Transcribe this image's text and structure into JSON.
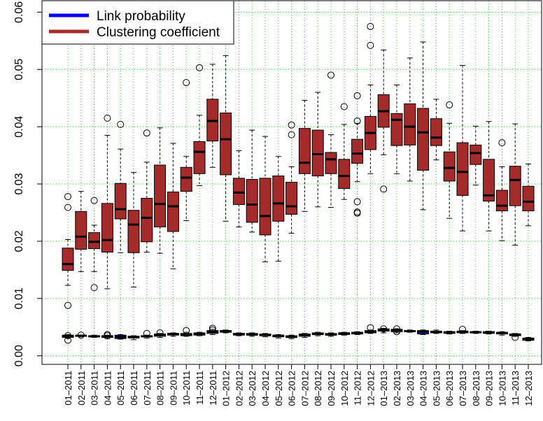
{
  "chart_data": {
    "type": "box",
    "categories": [
      "01–2011",
      "02–2011",
      "03–2011",
      "04–2011",
      "05–2011",
      "06–2011",
      "07–2011",
      "08–2011",
      "09–2011",
      "10–2011",
      "11–2011",
      "12–2011",
      "01–2012",
      "02–2012",
      "03–2012",
      "04–2012",
      "05–2012",
      "06–2012",
      "07–2012",
      "08–2012",
      "09–2012",
      "10–2012",
      "11–2012",
      "12–2012",
      "01–2013",
      "02–2013",
      "03–2013",
      "04–2013",
      "05–2013",
      "06–2013",
      "07–2013",
      "08–2013",
      "09–2013",
      "10–2013",
      "11–2013",
      "12–2013"
    ],
    "yticks": [
      "0.00",
      "0.01",
      "0.02",
      "0.03",
      "0.04",
      "0.05",
      "0.06"
    ],
    "ylim": [
      -0.0015,
      0.062
    ],
    "grid": true,
    "legend_position": "top-left",
    "colors": {
      "link": "#1a1aaa",
      "clustering": "#a52a2a",
      "grid": "#33cc33",
      "legend_link": "#0000ff",
      "legend_clust": "#a52a2a"
    },
    "series": [
      {
        "name": "Link probability",
        "boxes": [
          {
            "lw": 0.0031,
            "q1": 0.0032,
            "med": 0.0034,
            "q3": 0.0036,
            "uw": 0.0037,
            "out": [
              0.0027,
              0.0035
            ]
          },
          {
            "lw": 0.0033,
            "q1": 0.0034,
            "med": 0.0035,
            "q3": 0.0035,
            "uw": 0.0036,
            "out": [
              0.0036
            ]
          },
          {
            "lw": 0.0032,
            "q1": 0.0033,
            "med": 0.0034,
            "q3": 0.0035,
            "uw": 0.0036,
            "out": []
          },
          {
            "lw": 0.003,
            "q1": 0.0032,
            "med": 0.0034,
            "q3": 0.0035,
            "uw": 0.0036,
            "out": [
              0.0035,
              0.0037
            ]
          },
          {
            "lw": 0.0029,
            "q1": 0.003,
            "med": 0.0033,
            "q3": 0.0036,
            "uw": 0.0037,
            "out": []
          },
          {
            "lw": 0.0028,
            "q1": 0.0031,
            "med": 0.0033,
            "q3": 0.0034,
            "uw": 0.0035,
            "out": []
          },
          {
            "lw": 0.0031,
            "q1": 0.0033,
            "med": 0.0034,
            "q3": 0.0035,
            "uw": 0.0036,
            "out": [
              0.0039
            ]
          },
          {
            "lw": 0.0032,
            "q1": 0.0034,
            "med": 0.0036,
            "q3": 0.0038,
            "uw": 0.0039,
            "out": [
              0.004
            ]
          },
          {
            "lw": 0.0034,
            "q1": 0.0036,
            "med": 0.0038,
            "q3": 0.0039,
            "uw": 0.004,
            "out": []
          },
          {
            "lw": 0.0034,
            "q1": 0.0035,
            "med": 0.0037,
            "q3": 0.0039,
            "uw": 0.0041,
            "out": [
              0.0044
            ]
          },
          {
            "lw": 0.0035,
            "q1": 0.0036,
            "med": 0.0038,
            "q3": 0.004,
            "uw": 0.0041,
            "out": []
          },
          {
            "lw": 0.0037,
            "q1": 0.0039,
            "med": 0.0042,
            "q3": 0.0044,
            "uw": 0.0046,
            "out": [
              0.0045,
              0.0048
            ]
          },
          {
            "lw": 0.004,
            "q1": 0.0041,
            "med": 0.0043,
            "q3": 0.0044,
            "uw": 0.0045,
            "out": []
          },
          {
            "lw": 0.0035,
            "q1": 0.0036,
            "med": 0.0038,
            "q3": 0.0039,
            "uw": 0.004,
            "out": []
          },
          {
            "lw": 0.0034,
            "q1": 0.0036,
            "med": 0.0037,
            "q3": 0.0039,
            "uw": 0.004,
            "out": []
          },
          {
            "lw": 0.0033,
            "q1": 0.0035,
            "med": 0.0036,
            "q3": 0.0038,
            "uw": 0.0039,
            "out": []
          },
          {
            "lw": 0.0031,
            "q1": 0.0033,
            "med": 0.0035,
            "q3": 0.0036,
            "uw": 0.0037,
            "out": []
          },
          {
            "lw": 0.003,
            "q1": 0.0032,
            "med": 0.0033,
            "q3": 0.0035,
            "uw": 0.0036,
            "out": []
          },
          {
            "lw": 0.0032,
            "q1": 0.0034,
            "med": 0.0036,
            "q3": 0.0038,
            "uw": 0.0039,
            "out": []
          },
          {
            "lw": 0.0035,
            "q1": 0.0037,
            "med": 0.0038,
            "q3": 0.004,
            "uw": 0.0041,
            "out": []
          },
          {
            "lw": 0.0034,
            "q1": 0.0036,
            "med": 0.0037,
            "q3": 0.0039,
            "uw": 0.004,
            "out": []
          },
          {
            "lw": 0.0036,
            "q1": 0.0037,
            "med": 0.0039,
            "q3": 0.004,
            "uw": 0.0041,
            "out": []
          },
          {
            "lw": 0.0037,
            "q1": 0.0038,
            "med": 0.004,
            "q3": 0.0041,
            "uw": 0.0042,
            "out": []
          },
          {
            "lw": 0.0039,
            "q1": 0.004,
            "med": 0.0042,
            "q3": 0.0044,
            "uw": 0.0045,
            "out": [
              0.0049
            ]
          },
          {
            "lw": 0.004,
            "q1": 0.0043,
            "med": 0.0045,
            "q3": 0.0047,
            "uw": 0.0048,
            "out": [
              0.0047
            ]
          },
          {
            "lw": 0.004,
            "q1": 0.0042,
            "med": 0.0045,
            "q3": 0.0046,
            "uw": 0.0047,
            "out": [
              0.0042,
              0.0047
            ]
          },
          {
            "lw": 0.0041,
            "q1": 0.0042,
            "med": 0.0043,
            "q3": 0.0044,
            "uw": 0.0045,
            "out": []
          },
          {
            "lw": 0.0037,
            "q1": 0.0038,
            "med": 0.0042,
            "q3": 0.0044,
            "uw": 0.0045,
            "out": []
          },
          {
            "lw": 0.0039,
            "q1": 0.004,
            "med": 0.0042,
            "q3": 0.0043,
            "uw": 0.0045,
            "out": []
          },
          {
            "lw": 0.0038,
            "q1": 0.0039,
            "med": 0.0041,
            "q3": 0.0042,
            "uw": 0.0043,
            "out": []
          },
          {
            "lw": 0.0039,
            "q1": 0.004,
            "med": 0.0042,
            "q3": 0.0043,
            "uw": 0.0044,
            "out": [
              0.0046
            ]
          },
          {
            "lw": 0.0039,
            "q1": 0.004,
            "med": 0.0041,
            "q3": 0.0042,
            "uw": 0.0043,
            "out": []
          },
          {
            "lw": 0.0038,
            "q1": 0.0039,
            "med": 0.0041,
            "q3": 0.0042,
            "uw": 0.0043,
            "out": []
          },
          {
            "lw": 0.0036,
            "q1": 0.0038,
            "med": 0.004,
            "q3": 0.0041,
            "uw": 0.0042,
            "out": []
          },
          {
            "lw": 0.0034,
            "q1": 0.0035,
            "med": 0.0037,
            "q3": 0.0038,
            "uw": 0.0039,
            "out": [
              0.0032
            ]
          },
          {
            "lw": 0.0026,
            "q1": 0.0027,
            "med": 0.0029,
            "q3": 0.0031,
            "uw": 0.0032,
            "out": []
          }
        ]
      },
      {
        "name": "Clustering coefficient",
        "boxes": [
          {
            "lw": 0.0123,
            "q1": 0.0149,
            "med": 0.016,
            "q3": 0.0188,
            "uw": 0.0203,
            "out": [
              0.0088,
              0.0259,
              0.0278
            ]
          },
          {
            "lw": 0.0147,
            "q1": 0.0186,
            "med": 0.0208,
            "q3": 0.0252,
            "uw": 0.0287,
            "out": []
          },
          {
            "lw": 0.0147,
            "q1": 0.0187,
            "med": 0.0199,
            "q3": 0.0215,
            "uw": 0.0228,
            "out": [
              0.0119,
              0.0271
            ]
          },
          {
            "lw": 0.0117,
            "q1": 0.0181,
            "med": 0.0202,
            "q3": 0.0266,
            "uw": 0.0385,
            "out": [
              0.0415
            ]
          },
          {
            "lw": 0.018,
            "q1": 0.0239,
            "med": 0.0256,
            "q3": 0.0301,
            "uw": 0.0361,
            "out": [
              0.0404
            ]
          },
          {
            "lw": 0.012,
            "q1": 0.018,
            "med": 0.0229,
            "q3": 0.0254,
            "uw": 0.032,
            "out": []
          },
          {
            "lw": 0.0181,
            "q1": 0.0199,
            "med": 0.0241,
            "q3": 0.0275,
            "uw": 0.0338,
            "out": [
              0.0389
            ]
          },
          {
            "lw": 0.0179,
            "q1": 0.0225,
            "med": 0.0265,
            "q3": 0.0333,
            "uw": 0.0398,
            "out": []
          },
          {
            "lw": 0.0152,
            "q1": 0.0217,
            "med": 0.0261,
            "q3": 0.0286,
            "uw": 0.0371,
            "out": []
          },
          {
            "lw": 0.0236,
            "q1": 0.0287,
            "med": 0.0311,
            "q3": 0.0329,
            "uw": 0.0348,
            "out": [
              0.0477
            ]
          },
          {
            "lw": 0.0297,
            "q1": 0.0318,
            "med": 0.0356,
            "q3": 0.0374,
            "uw": 0.042,
            "out": [
              0.0503
            ]
          },
          {
            "lw": 0.0329,
            "q1": 0.0375,
            "med": 0.041,
            "q3": 0.0448,
            "uw": 0.0509,
            "out": []
          },
          {
            "lw": 0.0235,
            "q1": 0.0316,
            "med": 0.0378,
            "q3": 0.0424,
            "uw": 0.0524,
            "out": []
          },
          {
            "lw": 0.0225,
            "q1": 0.0264,
            "med": 0.0285,
            "q3": 0.031,
            "uw": 0.0358,
            "out": []
          },
          {
            "lw": 0.0216,
            "q1": 0.0233,
            "med": 0.0264,
            "q3": 0.0308,
            "uw": 0.0394,
            "out": []
          },
          {
            "lw": 0.0164,
            "q1": 0.0211,
            "med": 0.0244,
            "q3": 0.031,
            "uw": 0.0383,
            "out": []
          },
          {
            "lw": 0.0165,
            "q1": 0.0235,
            "med": 0.0266,
            "q3": 0.0314,
            "uw": 0.0348,
            "out": []
          },
          {
            "lw": 0.0214,
            "q1": 0.0247,
            "med": 0.0261,
            "q3": 0.0303,
            "uw": 0.033,
            "out": [
              0.0386,
              0.0403
            ]
          },
          {
            "lw": 0.0252,
            "q1": 0.0318,
            "med": 0.0337,
            "q3": 0.0397,
            "uw": 0.0446,
            "out": []
          },
          {
            "lw": 0.026,
            "q1": 0.0314,
            "med": 0.0352,
            "q3": 0.0394,
            "uw": 0.046,
            "out": []
          },
          {
            "lw": 0.0259,
            "q1": 0.0318,
            "med": 0.0343,
            "q3": 0.0355,
            "uw": 0.0386,
            "out": [
              0.049
            ]
          },
          {
            "lw": 0.0273,
            "q1": 0.0292,
            "med": 0.0314,
            "q3": 0.0343,
            "uw": 0.0404,
            "out": [
              0.0435
            ]
          },
          {
            "lw": 0.0304,
            "q1": 0.0336,
            "med": 0.0353,
            "q3": 0.0378,
            "uw": 0.0406,
            "out": [
              0.0249,
              0.0251,
              0.0269,
              0.041,
              0.0454
            ]
          },
          {
            "lw": 0.0318,
            "q1": 0.036,
            "med": 0.0389,
            "q3": 0.0418,
            "uw": 0.0473,
            "out": [
              0.0542,
              0.0575
            ]
          },
          {
            "lw": 0.0351,
            "q1": 0.0399,
            "med": 0.0427,
            "q3": 0.0456,
            "uw": 0.0534,
            "out": [
              0.0291
            ]
          },
          {
            "lw": 0.0318,
            "q1": 0.0367,
            "med": 0.0412,
            "q3": 0.0423,
            "uw": 0.0473,
            "out": []
          },
          {
            "lw": 0.0305,
            "q1": 0.0368,
            "med": 0.04,
            "q3": 0.044,
            "uw": 0.052,
            "out": []
          },
          {
            "lw": 0.0255,
            "q1": 0.0324,
            "med": 0.039,
            "q3": 0.0432,
            "uw": 0.0548,
            "out": []
          },
          {
            "lw": 0.0342,
            "q1": 0.0367,
            "med": 0.0381,
            "q3": 0.0414,
            "uw": 0.0448,
            "out": []
          },
          {
            "lw": 0.024,
            "q1": 0.0305,
            "med": 0.0328,
            "q3": 0.0356,
            "uw": 0.0406,
            "out": [
              0.0438
            ]
          },
          {
            "lw": 0.0218,
            "q1": 0.028,
            "med": 0.0321,
            "q3": 0.0372,
            "uw": 0.0507,
            "out": []
          },
          {
            "lw": 0.0298,
            "q1": 0.0334,
            "med": 0.0354,
            "q3": 0.0368,
            "uw": 0.0401,
            "out": []
          },
          {
            "lw": 0.0218,
            "q1": 0.027,
            "med": 0.028,
            "q3": 0.0343,
            "uw": 0.0409,
            "out": []
          },
          {
            "lw": 0.0201,
            "q1": 0.0253,
            "med": 0.0262,
            "q3": 0.0289,
            "uw": 0.033,
            "out": [
              0.0372
            ]
          },
          {
            "lw": 0.0193,
            "q1": 0.0262,
            "med": 0.0307,
            "q3": 0.0331,
            "uw": 0.0405,
            "out": []
          },
          {
            "lw": 0.0227,
            "q1": 0.0253,
            "med": 0.0269,
            "q3": 0.0296,
            "uw": 0.0335,
            "out": []
          }
        ]
      }
    ]
  }
}
